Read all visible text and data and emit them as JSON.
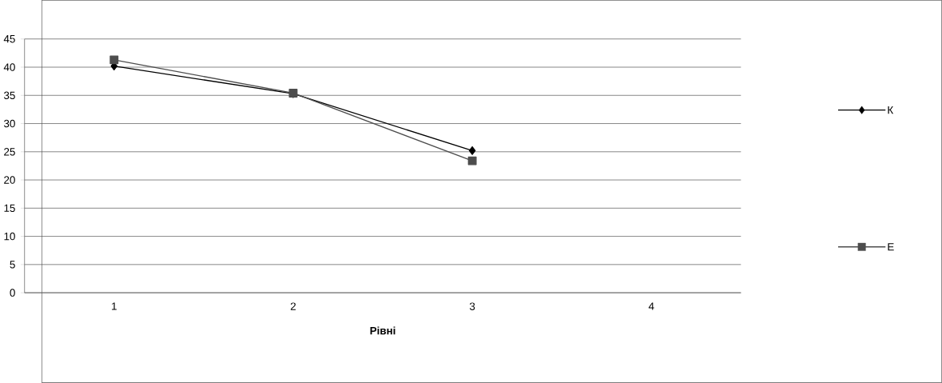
{
  "chart_data": {
    "type": "line",
    "xlabel": "Рівні",
    "categories": [
      "1",
      "2",
      "3",
      "4"
    ],
    "series": [
      {
        "name": "К",
        "color": "#000000",
        "marker": "diamond",
        "values": [
          40.2,
          35.3,
          25.2,
          null
        ]
      },
      {
        "name": "Е",
        "color": "#4d4d4d",
        "marker": "square",
        "values": [
          41.3,
          35.4,
          23.4,
          null
        ]
      }
    ],
    "ylim": [
      0,
      45
    ],
    "yticks": [
      0,
      5,
      10,
      15,
      20,
      25,
      30,
      35,
      40,
      45
    ],
    "grid": "y",
    "legend": "right"
  }
}
